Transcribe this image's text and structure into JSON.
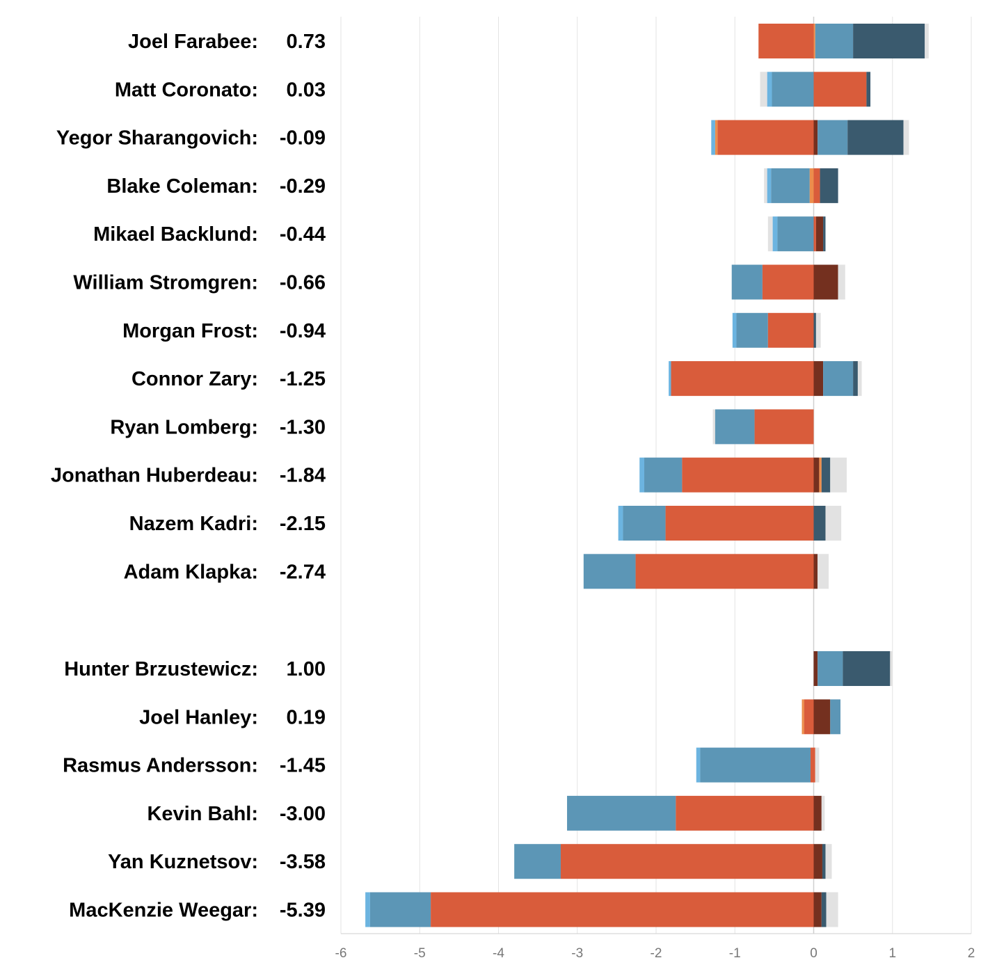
{
  "chart_data": {
    "type": "bar",
    "orientation": "horizontal",
    "stacked": true,
    "xlim": [
      -6,
      2
    ],
    "x_ticks": [
      "-6",
      "-5",
      "-4",
      "-3",
      "-2",
      "-1",
      "0",
      "1",
      "2"
    ],
    "grid": true,
    "legend": "none",
    "colors": {
      "grey": "#e2e2e2",
      "light_blue": "#6cb4e0",
      "orange": "#ec8d4c",
      "steel_blue": "#5c96b6",
      "red_orange": "#d95c3b",
      "dark_red": "#74301f",
      "dark_navy": "#3a5a6e"
    },
    "groups": [
      {
        "players": [
          {
            "name": "Joel Farabee:",
            "value": "0.73",
            "segments": [
              [
                "red_orange",
                -0.7,
                0
              ],
              [
                "orange",
                0,
                0.02
              ],
              [
                "steel_blue",
                0.02,
                0.5
              ],
              [
                "dark_navy",
                0.5,
                1.41
              ],
              [
                "grey",
                1.41,
                1.46
              ]
            ]
          },
          {
            "name": "Matt Coronato:",
            "value": "0.03",
            "segments": [
              [
                "grey",
                -0.68,
                -0.59
              ],
              [
                "light_blue",
                -0.59,
                -0.53
              ],
              [
                "steel_blue",
                -0.53,
                0
              ],
              [
                "red_orange",
                0,
                0.67
              ],
              [
                "dark_navy",
                0.67,
                0.72
              ]
            ]
          },
          {
            "name": "Yegor Sharangovich:",
            "value": "-0.09",
            "segments": [
              [
                "light_blue",
                -1.3,
                -1.25
              ],
              [
                "orange",
                -1.25,
                -1.22
              ],
              [
                "red_orange",
                -1.22,
                0
              ],
              [
                "dark_red",
                0,
                0.05
              ],
              [
                "steel_blue",
                0.05,
                0.43
              ],
              [
                "dark_navy",
                0.43,
                1.14
              ],
              [
                "grey",
                1.14,
                1.21
              ]
            ]
          },
          {
            "name": "Blake Coleman:",
            "value": "-0.29",
            "segments": [
              [
                "grey",
                -0.63,
                -0.59
              ],
              [
                "light_blue",
                -0.59,
                -0.54
              ],
              [
                "steel_blue",
                -0.54,
                -0.05
              ],
              [
                "orange",
                -0.05,
                0
              ],
              [
                "red_orange",
                0,
                0.08
              ],
              [
                "dark_navy",
                0.08,
                0.31
              ]
            ]
          },
          {
            "name": "Mikael Backlund:",
            "value": "-0.44",
            "segments": [
              [
                "grey",
                -0.58,
                -0.52
              ],
              [
                "light_blue",
                -0.52,
                -0.46
              ],
              [
                "steel_blue",
                -0.46,
                0
              ],
              [
                "red_orange",
                0,
                0.03
              ],
              [
                "dark_red",
                0.03,
                0.12
              ],
              [
                "dark_navy",
                0.12,
                0.15
              ]
            ]
          },
          {
            "name": "William Stromgren:",
            "value": "-0.66",
            "segments": [
              [
                "steel_blue",
                -1.04,
                -0.65
              ],
              [
                "red_orange",
                -0.65,
                0
              ],
              [
                "dark_red",
                0,
                0.31
              ],
              [
                "grey",
                0.31,
                0.4
              ]
            ]
          },
          {
            "name": "Morgan Frost:",
            "value": "-0.94",
            "segments": [
              [
                "light_blue",
                -1.03,
                -0.98
              ],
              [
                "steel_blue",
                -0.98,
                -0.58
              ],
              [
                "red_orange",
                -0.58,
                0
              ],
              [
                "dark_navy",
                0,
                0.03
              ],
              [
                "grey",
                0.03,
                0.09
              ]
            ]
          },
          {
            "name": "Connor Zary:",
            "value": "-1.25",
            "segments": [
              [
                "light_blue",
                -1.84,
                -1.81
              ],
              [
                "red_orange",
                -1.81,
                0
              ],
              [
                "dark_red",
                0,
                0.12
              ],
              [
                "steel_blue",
                0.12,
                0.5
              ],
              [
                "dark_navy",
                0.5,
                0.56
              ],
              [
                "grey",
                0.56,
                0.61
              ]
            ]
          },
          {
            "name": "Ryan Lomberg:",
            "value": "-1.30",
            "segments": [
              [
                "grey",
                -1.28,
                -1.25
              ],
              [
                "steel_blue",
                -1.25,
                -0.75
              ],
              [
                "red_orange",
                -0.75,
                0
              ]
            ]
          },
          {
            "name": "Jonathan Huberdeau:",
            "value": "-1.84",
            "segments": [
              [
                "light_blue",
                -2.21,
                -2.15
              ],
              [
                "steel_blue",
                -2.15,
                -1.67
              ],
              [
                "red_orange",
                -1.67,
                0
              ],
              [
                "dark_red",
                0,
                0.07
              ],
              [
                "orange",
                0.07,
                0.1
              ],
              [
                "dark_navy",
                0.1,
                0.21
              ],
              [
                "grey",
                0.21,
                0.42
              ]
            ]
          },
          {
            "name": "Nazem Kadri:",
            "value": "-2.15",
            "segments": [
              [
                "light_blue",
                -2.48,
                -2.42
              ],
              [
                "steel_blue",
                -2.42,
                -1.88
              ],
              [
                "red_orange",
                -1.88,
                0
              ],
              [
                "dark_navy",
                0,
                0.15
              ],
              [
                "grey",
                0.15,
                0.35
              ]
            ]
          },
          {
            "name": "Adam Klapka:",
            "value": "-2.74",
            "segments": [
              [
                "steel_blue",
                -2.92,
                -2.26
              ],
              [
                "red_orange",
                -2.26,
                0
              ],
              [
                "dark_red",
                0,
                0.05
              ],
              [
                "grey",
                0.05,
                0.19
              ]
            ]
          }
        ]
      },
      {
        "players": [
          {
            "name": "Hunter Brzustewicz:",
            "value": "1.00",
            "segments": [
              [
                "dark_red",
                0,
                0.05
              ],
              [
                "steel_blue",
                0.05,
                0.37
              ],
              [
                "dark_navy",
                0.37,
                0.97
              ],
              [
                "grey",
                0.97,
                1.0
              ]
            ]
          },
          {
            "name": "Joel Hanley:",
            "value": "0.19",
            "segments": [
              [
                "orange",
                -0.15,
                -0.12
              ],
              [
                "red_orange",
                -0.12,
                0
              ],
              [
                "dark_red",
                0,
                0.21
              ],
              [
                "steel_blue",
                0.21,
                0.34
              ]
            ]
          },
          {
            "name": "Rasmus Andersson:",
            "value": "-1.45",
            "segments": [
              [
                "light_blue",
                -1.49,
                -1.44
              ],
              [
                "steel_blue",
                -1.44,
                -0.04
              ],
              [
                "red_orange",
                -0.04,
                0.02
              ],
              [
                "grey",
                0.02,
                0.07
              ]
            ]
          },
          {
            "name": "Kevin Bahl:",
            "value": "-3.00",
            "segments": [
              [
                "steel_blue",
                -3.13,
                -1.75
              ],
              [
                "red_orange",
                -1.75,
                0
              ],
              [
                "dark_red",
                0,
                0.1
              ],
              [
                "grey",
                0.1,
                0.14
              ]
            ]
          },
          {
            "name": "Yan Kuznetsov:",
            "value": "-3.58",
            "segments": [
              [
                "steel_blue",
                -3.8,
                -3.21
              ],
              [
                "red_orange",
                -3.21,
                0
              ],
              [
                "dark_red",
                0,
                0.11
              ],
              [
                "dark_navy",
                0.11,
                0.15
              ],
              [
                "grey",
                0.15,
                0.23
              ]
            ]
          },
          {
            "name": "MacKenzie Weegar:",
            "value": "-5.39",
            "segments": [
              [
                "light_blue",
                -5.69,
                -5.63
              ],
              [
                "steel_blue",
                -5.63,
                -4.86
              ],
              [
                "red_orange",
                -4.86,
                0
              ],
              [
                "dark_red",
                0,
                0.1
              ],
              [
                "dark_navy",
                0.1,
                0.16
              ],
              [
                "grey",
                0.16,
                0.31
              ]
            ]
          }
        ]
      }
    ]
  }
}
